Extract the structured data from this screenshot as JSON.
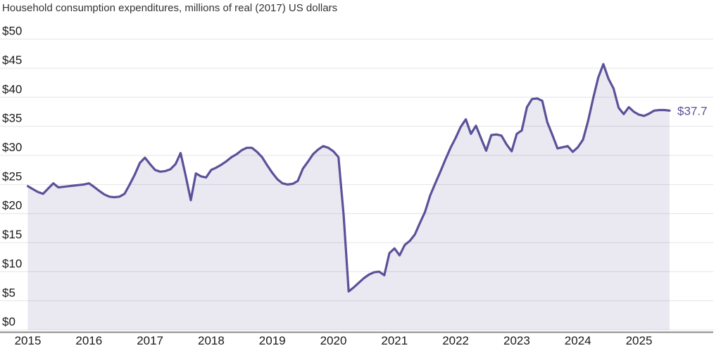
{
  "title": "Household consumption expenditures, millions of real (2017) US dollars",
  "colors": {
    "line": "#5a5299",
    "area_fill": "rgba(90,82,153,0.13)",
    "gridline": "#e4e4e4",
    "axis_line": "#8b8b8b",
    "tick_text": "#1a1a1a",
    "title_text": "#333333",
    "end_label_text": "#5a5299"
  },
  "end_label": "$37.7",
  "chart_data": {
    "type": "area",
    "title": "Household consumption expenditures, millions of real (2017) US dollars",
    "unit": "millions of real (2017) US dollars",
    "frequency": "monthly",
    "x_start": "2015-01",
    "x_end": "2025-07",
    "x_tick_labels": [
      "2015",
      "2016",
      "2017",
      "2018",
      "2019",
      "2020",
      "2021",
      "2022",
      "2023",
      "2024",
      "2025"
    ],
    "y_ticks": [
      0,
      5,
      10,
      15,
      20,
      25,
      30,
      35,
      40,
      45,
      50
    ],
    "y_tick_labels": [
      "$0",
      "$5",
      "$10",
      "$15",
      "$20",
      "$25",
      "$30",
      "$35",
      "$40",
      "$45",
      "$50"
    ],
    "ylim": [
      0,
      50
    ],
    "grid": true,
    "legend": false,
    "end_value_label": "$37.7",
    "series": [
      {
        "name": "Household consumption expenditures",
        "values": [
          24.7,
          24.2,
          23.7,
          23.4,
          24.3,
          25.2,
          24.5,
          24.6,
          24.7,
          24.8,
          24.9,
          25.0,
          25.2,
          24.6,
          23.9,
          23.3,
          22.9,
          22.8,
          22.9,
          23.4,
          25.0,
          26.7,
          28.7,
          29.6,
          28.5,
          27.5,
          27.2,
          27.3,
          27.6,
          28.5,
          30.4,
          26.5,
          22.3,
          26.9,
          26.4,
          26.2,
          27.5,
          27.9,
          28.4,
          29.0,
          29.7,
          30.2,
          30.9,
          31.3,
          31.3,
          30.6,
          29.7,
          28.3,
          27.0,
          25.9,
          25.2,
          25.0,
          25.1,
          25.6,
          27.7,
          28.9,
          30.2,
          31.0,
          31.6,
          31.3,
          30.7,
          29.7,
          19.8,
          6.6,
          7.3,
          8.1,
          8.9,
          9.5,
          9.9,
          10.0,
          9.4,
          13.2,
          14.0,
          12.8,
          14.6,
          15.3,
          16.4,
          18.4,
          20.3,
          23.1,
          25.2,
          27.2,
          29.3,
          31.3,
          33.0,
          34.9,
          36.2,
          33.7,
          35.1,
          32.9,
          30.8,
          33.5,
          33.6,
          33.4,
          31.9,
          30.7,
          33.7,
          34.3,
          38.3,
          39.7,
          39.8,
          39.4,
          35.7,
          33.5,
          31.2,
          31.4,
          31.6,
          30.6,
          31.4,
          32.7,
          35.9,
          39.8,
          43.4,
          45.7,
          43.2,
          41.5,
          38.2,
          37.1,
          38.3,
          37.5,
          37.0,
          36.8,
          37.2,
          37.7,
          37.8,
          37.8,
          37.7
        ]
      }
    ]
  }
}
